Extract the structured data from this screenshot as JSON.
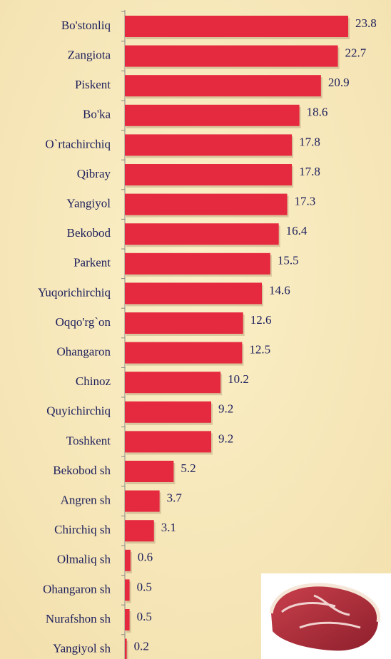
{
  "chart_data": {
    "type": "bar",
    "orientation": "horizontal",
    "categories": [
      "Bo'stonliq",
      "Zangiota",
      "Piskent",
      "Bo'ka",
      "O`rtachirchiq",
      "Qibray",
      "Yangiyol",
      "Bekobod",
      "Parkent",
      "Yuqorichirchiq",
      "Oqqo'rg`on",
      "Ohangaron",
      "Chinoz",
      "Quyichirchiq",
      "Toshkent",
      "Bekobod sh",
      "Angren sh",
      "Chirchiq sh",
      "Olmaliq sh",
      "Ohangaron sh",
      "Nurafshon sh",
      "Yangiyol sh"
    ],
    "values": [
      23.8,
      22.7,
      20.9,
      18.6,
      17.8,
      17.8,
      17.3,
      16.4,
      15.5,
      14.6,
      12.6,
      12.5,
      10.2,
      9.2,
      9.2,
      5.2,
      3.7,
      3.1,
      0.6,
      0.5,
      0.5,
      0.2
    ],
    "color": "#e5293f"
  }
}
